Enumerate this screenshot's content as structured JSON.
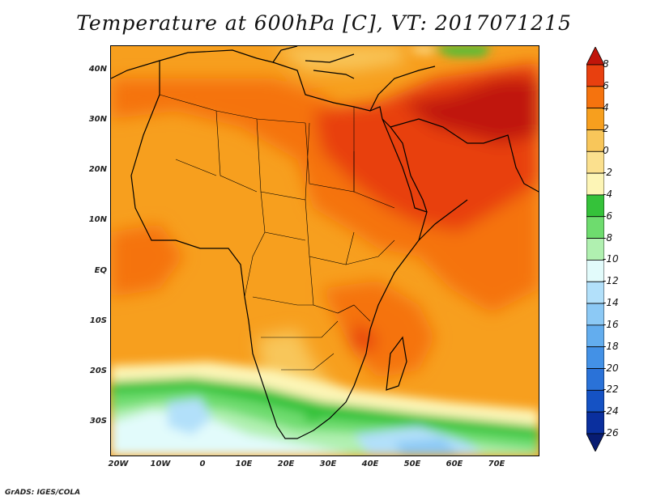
{
  "title": "Temperature at 600hPa [C], VT: 2017071215",
  "credit": "GrADS: IGES/COLA",
  "lat_labels": [
    "40N",
    "30N",
    "20N",
    "10N",
    "EQ",
    "10S",
    "20S",
    "30S"
  ],
  "lon_labels": [
    "20W",
    "10W",
    "0",
    "10E",
    "20E",
    "30E",
    "40E",
    "50E",
    "60E",
    "70E"
  ],
  "colorbar": {
    "levels": [
      "8",
      "6",
      "4",
      "2",
      "0",
      "-2",
      "-4",
      "-6",
      "-8",
      "-10",
      "-12",
      "-14",
      "-16",
      "-18",
      "-20",
      "-22",
      "-24",
      "-26"
    ],
    "colors": [
      "#c0150a",
      "#e8400f",
      "#f5730e",
      "#f79f1e",
      "#f8c65a",
      "#fbe08e",
      "#fdf5b6",
      "#35c23a",
      "#6edc6e",
      "#b0f0b0",
      "#e2fbfb",
      "#b2e0fa",
      "#8cc9f5",
      "#63adee",
      "#4391e6",
      "#2a72d8",
      "#1552c4",
      "#0a2f9e",
      "#081c72"
    ]
  },
  "chart_data": {
    "type": "heatmap",
    "title": "Temperature at 600hPa [C], VT: 2017071215",
    "variable": "Temperature at 600hPa",
    "units": "C",
    "valid_time": "2017071215",
    "lon_range": [
      -22,
      80
    ],
    "lat_range": [
      -37,
      45
    ],
    "contour_levels": [
      8,
      6,
      4,
      2,
      0,
      -2,
      -4,
      -6,
      -8,
      -10,
      -12,
      -14,
      -16,
      -18,
      -20,
      -22,
      -24,
      -26
    ]
  }
}
